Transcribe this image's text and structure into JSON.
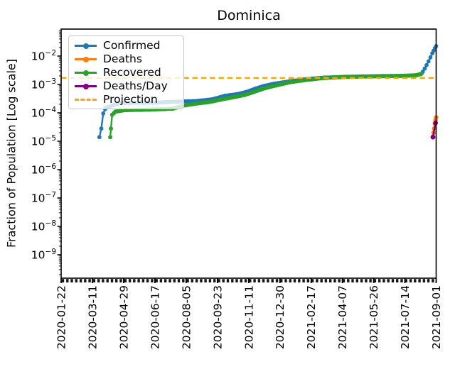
{
  "title": "Dominica",
  "chart_data": {
    "type": "line",
    "title": "Dominica",
    "ylabel": "Fraction of Population [Log scale]",
    "yscale": "log",
    "x_range": [
      "2020-01-22",
      "2021-09-01"
    ],
    "ylim_exponents": [
      -1.05,
      -9.83
    ],
    "y_ticks_exponents": [
      -2,
      -3,
      -4,
      -5,
      -6,
      -7,
      -8,
      -9
    ],
    "x_tick_labels": [
      "2020-01-22",
      "2020-03-11",
      "2020-04-29",
      "2020-06-17",
      "2020-08-05",
      "2020-09-23",
      "2020-11-11",
      "2020-12-30",
      "2021-02-17",
      "2021-04-07",
      "2021-05-26",
      "2021-07-14",
      "2021-09-01"
    ],
    "legend_position": "upper left",
    "grid": false,
    "series": [
      {
        "name": "Confirmed",
        "color": "#1f77b4",
        "style": "solid",
        "markers": true,
        "points": [
          [
            "2020-03-22",
            1.4e-05
          ],
          [
            "2020-03-25",
            2.8e-05
          ],
          [
            "2020-03-28",
            9.5e-05
          ],
          [
            "2020-04-01",
            0.00015
          ],
          [
            "2020-04-08",
            0.00017
          ],
          [
            "2020-04-22",
            0.00022
          ],
          [
            "2020-05-20",
            0.000225
          ],
          [
            "2020-06-20",
            0.00023
          ],
          [
            "2020-07-25",
            0.00025
          ],
          [
            "2020-08-20",
            0.00026
          ],
          [
            "2020-09-15",
            0.0003
          ],
          [
            "2020-10-05",
            0.0004
          ],
          [
            "2020-10-25",
            0.00046
          ],
          [
            "2020-11-08",
            0.00055
          ],
          [
            "2020-11-22",
            0.00072
          ],
          [
            "2020-12-06",
            0.0009
          ],
          [
            "2020-12-20",
            0.00105
          ],
          [
            "2021-01-15",
            0.0013
          ],
          [
            "2021-02-10",
            0.00155
          ],
          [
            "2021-03-10",
            0.00175
          ],
          [
            "2021-04-10",
            0.00185
          ],
          [
            "2021-05-10",
            0.00192
          ],
          [
            "2021-06-10",
            0.00197
          ],
          [
            "2021-07-10",
            0.00202
          ],
          [
            "2021-07-30",
            0.0021
          ],
          [
            "2021-08-08",
            0.0023
          ],
          [
            "2021-08-11",
            0.0028
          ],
          [
            "2021-08-14",
            0.0036
          ],
          [
            "2021-08-17",
            0.0048
          ],
          [
            "2021-08-20",
            0.0065
          ],
          [
            "2021-08-23",
            0.009
          ],
          [
            "2021-08-26",
            0.0125
          ],
          [
            "2021-08-28",
            0.0155
          ],
          [
            "2021-08-30",
            0.019
          ],
          [
            "2021-09-01",
            0.0225
          ]
        ]
      },
      {
        "name": "Deaths",
        "color": "#ff7f0e",
        "style": "solid",
        "markers": true,
        "points": [
          [
            "2021-08-27",
            1.4e-05
          ],
          [
            "2021-08-29",
            2.8e-05
          ],
          [
            "2021-08-30",
            4.2e-05
          ],
          [
            "2021-08-31",
            5.6e-05
          ],
          [
            "2021-09-01",
            6.9e-05
          ]
        ]
      },
      {
        "name": "Recovered",
        "color": "#2ca02c",
        "style": "solid",
        "markers": true,
        "points": [
          [
            "2020-04-08",
            1.4e-05
          ],
          [
            "2020-04-09",
            2.8e-05
          ],
          [
            "2020-04-11",
            8.5e-05
          ],
          [
            "2020-04-16",
            0.00011
          ],
          [
            "2020-05-01",
            0.000125
          ],
          [
            "2020-06-10",
            0.00013
          ],
          [
            "2020-07-15",
            0.00014
          ],
          [
            "2020-08-01",
            0.00018
          ],
          [
            "2020-08-20",
            0.00021
          ],
          [
            "2020-09-10",
            0.00024
          ],
          [
            "2020-10-01",
            0.0003
          ],
          [
            "2020-10-20",
            0.00036
          ],
          [
            "2020-11-05",
            0.00043
          ],
          [
            "2020-11-20",
            0.00055
          ],
          [
            "2020-12-05",
            0.00072
          ],
          [
            "2020-12-20",
            0.00088
          ],
          [
            "2021-01-15",
            0.0012
          ],
          [
            "2021-02-10",
            0.00145
          ],
          [
            "2021-03-10",
            0.0017
          ],
          [
            "2021-04-10",
            0.00183
          ],
          [
            "2021-05-10",
            0.0019
          ],
          [
            "2021-06-10",
            0.00196
          ],
          [
            "2021-07-10",
            0.002
          ],
          [
            "2021-08-01",
            0.0021
          ],
          [
            "2021-08-09",
            0.0024
          ]
        ]
      },
      {
        "name": "Deaths/Day",
        "color": "#800080",
        "style": "solid",
        "markers": true,
        "points": [
          [
            "2021-08-27",
            1.4e-05
          ],
          [
            "2021-08-31",
            4.4e-05
          ]
        ]
      },
      {
        "name": "Projection",
        "color": "#ffa500",
        "style": "dashed",
        "markers": false,
        "points": [
          [
            "2020-01-22",
            0.0017
          ],
          [
            "2021-09-01",
            0.0017
          ]
        ]
      }
    ]
  }
}
